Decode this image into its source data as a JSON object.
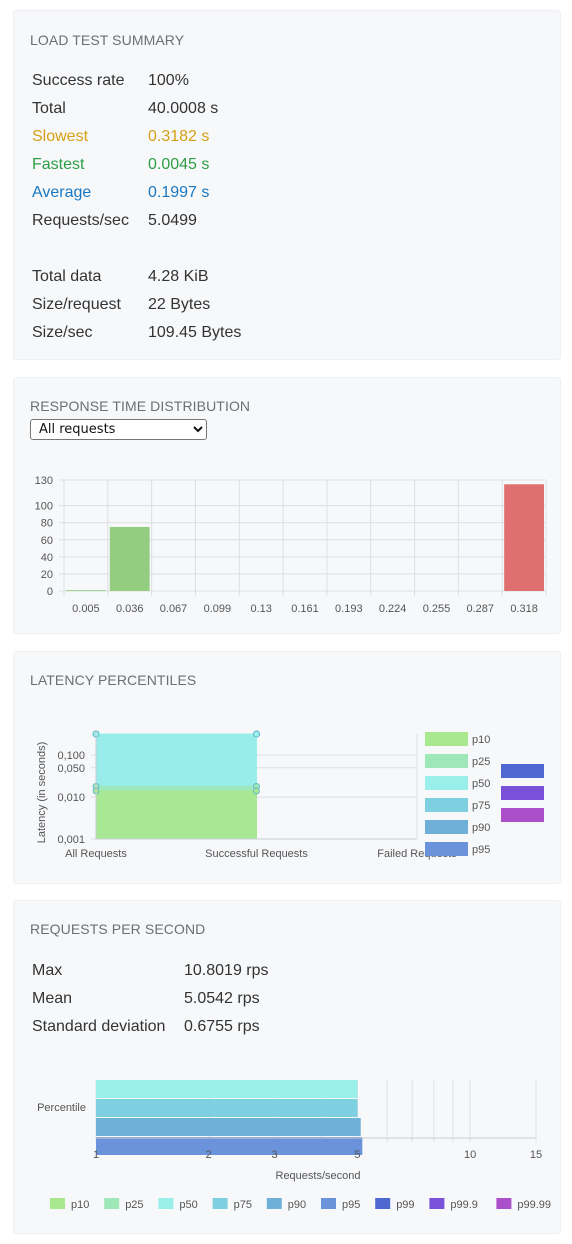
{
  "summary": {
    "title": "LOAD TEST SUMMARY",
    "rows": [
      {
        "label": "Success rate",
        "value": "100%",
        "color": "#333333"
      },
      {
        "label": "Total",
        "value": "40.0008 s",
        "color": "#333333"
      },
      {
        "label": "Slowest",
        "value": "0.3182 s",
        "color": "#d4a017"
      },
      {
        "label": "Fastest",
        "value": "0.0045 s",
        "color": "#2e9e44"
      },
      {
        "label": "Average",
        "value": "0.1997 s",
        "color": "#1a78c2"
      },
      {
        "label": "Requests/sec",
        "value": "5.0499",
        "color": "#333333"
      }
    ],
    "rows2": [
      {
        "label": "Total data",
        "value": "4.28 KiB"
      },
      {
        "label": "Size/request",
        "value": "22 Bytes"
      },
      {
        "label": "Size/sec",
        "value": "109.45 Bytes"
      }
    ]
  },
  "distribution": {
    "title": "RESPONSE TIME DISTRIBUTION",
    "select_value": "All requests"
  },
  "latency": {
    "title": "LATENCY PERCENTILES"
  },
  "rps": {
    "title": "REQUESTS PER SECOND",
    "rows": [
      {
        "label": "Max",
        "value": "10.8019 rps"
      },
      {
        "label": "Mean",
        "value": "5.0542 rps"
      },
      {
        "label": "Standard deviation",
        "value": "0.6755 rps"
      }
    ]
  },
  "chart_data": [
    {
      "type": "bar",
      "title": "",
      "categories": [
        "0.005",
        "0.036",
        "0.067",
        "0.099",
        "0.13",
        "0.161",
        "0.193",
        "0.224",
        "0.255",
        "0.287",
        "0.318"
      ],
      "values": [
        1,
        75,
        0,
        0,
        0,
        0,
        0,
        0,
        0,
        0,
        125
      ],
      "colors": [
        "#93cd7f",
        "#93cd7f",
        "#e07070",
        "#e07070",
        "#e07070",
        "#e07070",
        "#e07070",
        "#e07070",
        "#e07070",
        "#e07070",
        "#e07070"
      ],
      "yticks": [
        0,
        20,
        40,
        60,
        80,
        100,
        130
      ],
      "ylim": [
        0,
        130
      ],
      "grid": true
    },
    {
      "type": "area",
      "categories": [
        "All Requests",
        "Successful Requests",
        "Failed Requests"
      ],
      "ylabel": "Latency (in seconds)",
      "yscale": "log",
      "yticks": [
        "0,001",
        "0,010",
        "0,050",
        "0,100"
      ],
      "series": [
        {
          "name": "p10",
          "values": [
            0.014,
            0.014,
            null
          ],
          "color": "#a8e88f"
        },
        {
          "name": "p25",
          "values": [
            0.018,
            0.018,
            null
          ],
          "color": "#9ee8b8"
        },
        {
          "name": "p50",
          "values": [
            0.32,
            0.32,
            null
          ],
          "color": "#9befeb"
        },
        {
          "name": "p75",
          "values": [
            0.32,
            0.32,
            null
          ],
          "color": "#7ecfe0"
        },
        {
          "name": "p90",
          "values": [
            0.32,
            0.32,
            null
          ],
          "color": "#6fb0d8"
        },
        {
          "name": "p95",
          "values": [
            0.32,
            0.32,
            null
          ],
          "color": "#6a93dc"
        }
      ],
      "legend": [
        "p10",
        "p25",
        "p50",
        "p75",
        "p90",
        "p95"
      ],
      "legend_extra_colors": [
        "#4f68d1",
        "#7a52d9",
        "#ab4fcb"
      ],
      "legend_position": "right"
    },
    {
      "type": "bar",
      "orientation": "horizontal",
      "categories": [
        "Percentile"
      ],
      "xlabel": "Requests/second",
      "xscale": "log",
      "xlim": [
        1,
        15
      ],
      "xticks": [
        1,
        2,
        3,
        5,
        10,
        15
      ],
      "series": [
        {
          "name": "p10",
          "value": null,
          "color": "#a8e88f"
        },
        {
          "name": "p25",
          "value": null,
          "color": "#9ee8b8"
        },
        {
          "name": "p50",
          "value": 5.0,
          "color": "#9befeb"
        },
        {
          "name": "p75",
          "value": 5.0,
          "color": "#7ecfe0"
        },
        {
          "name": "p90",
          "value": 5.1,
          "color": "#6fb0d8"
        },
        {
          "name": "p95",
          "value": 5.15,
          "color": "#6a93dc"
        },
        {
          "name": "p99",
          "value": null,
          "color": "#4f68d1"
        },
        {
          "name": "p99.9",
          "value": null,
          "color": "#7a52d9"
        },
        {
          "name": "p99.99",
          "value": null,
          "color": "#ab4fcb"
        }
      ],
      "legend_position": "bottom"
    }
  ]
}
